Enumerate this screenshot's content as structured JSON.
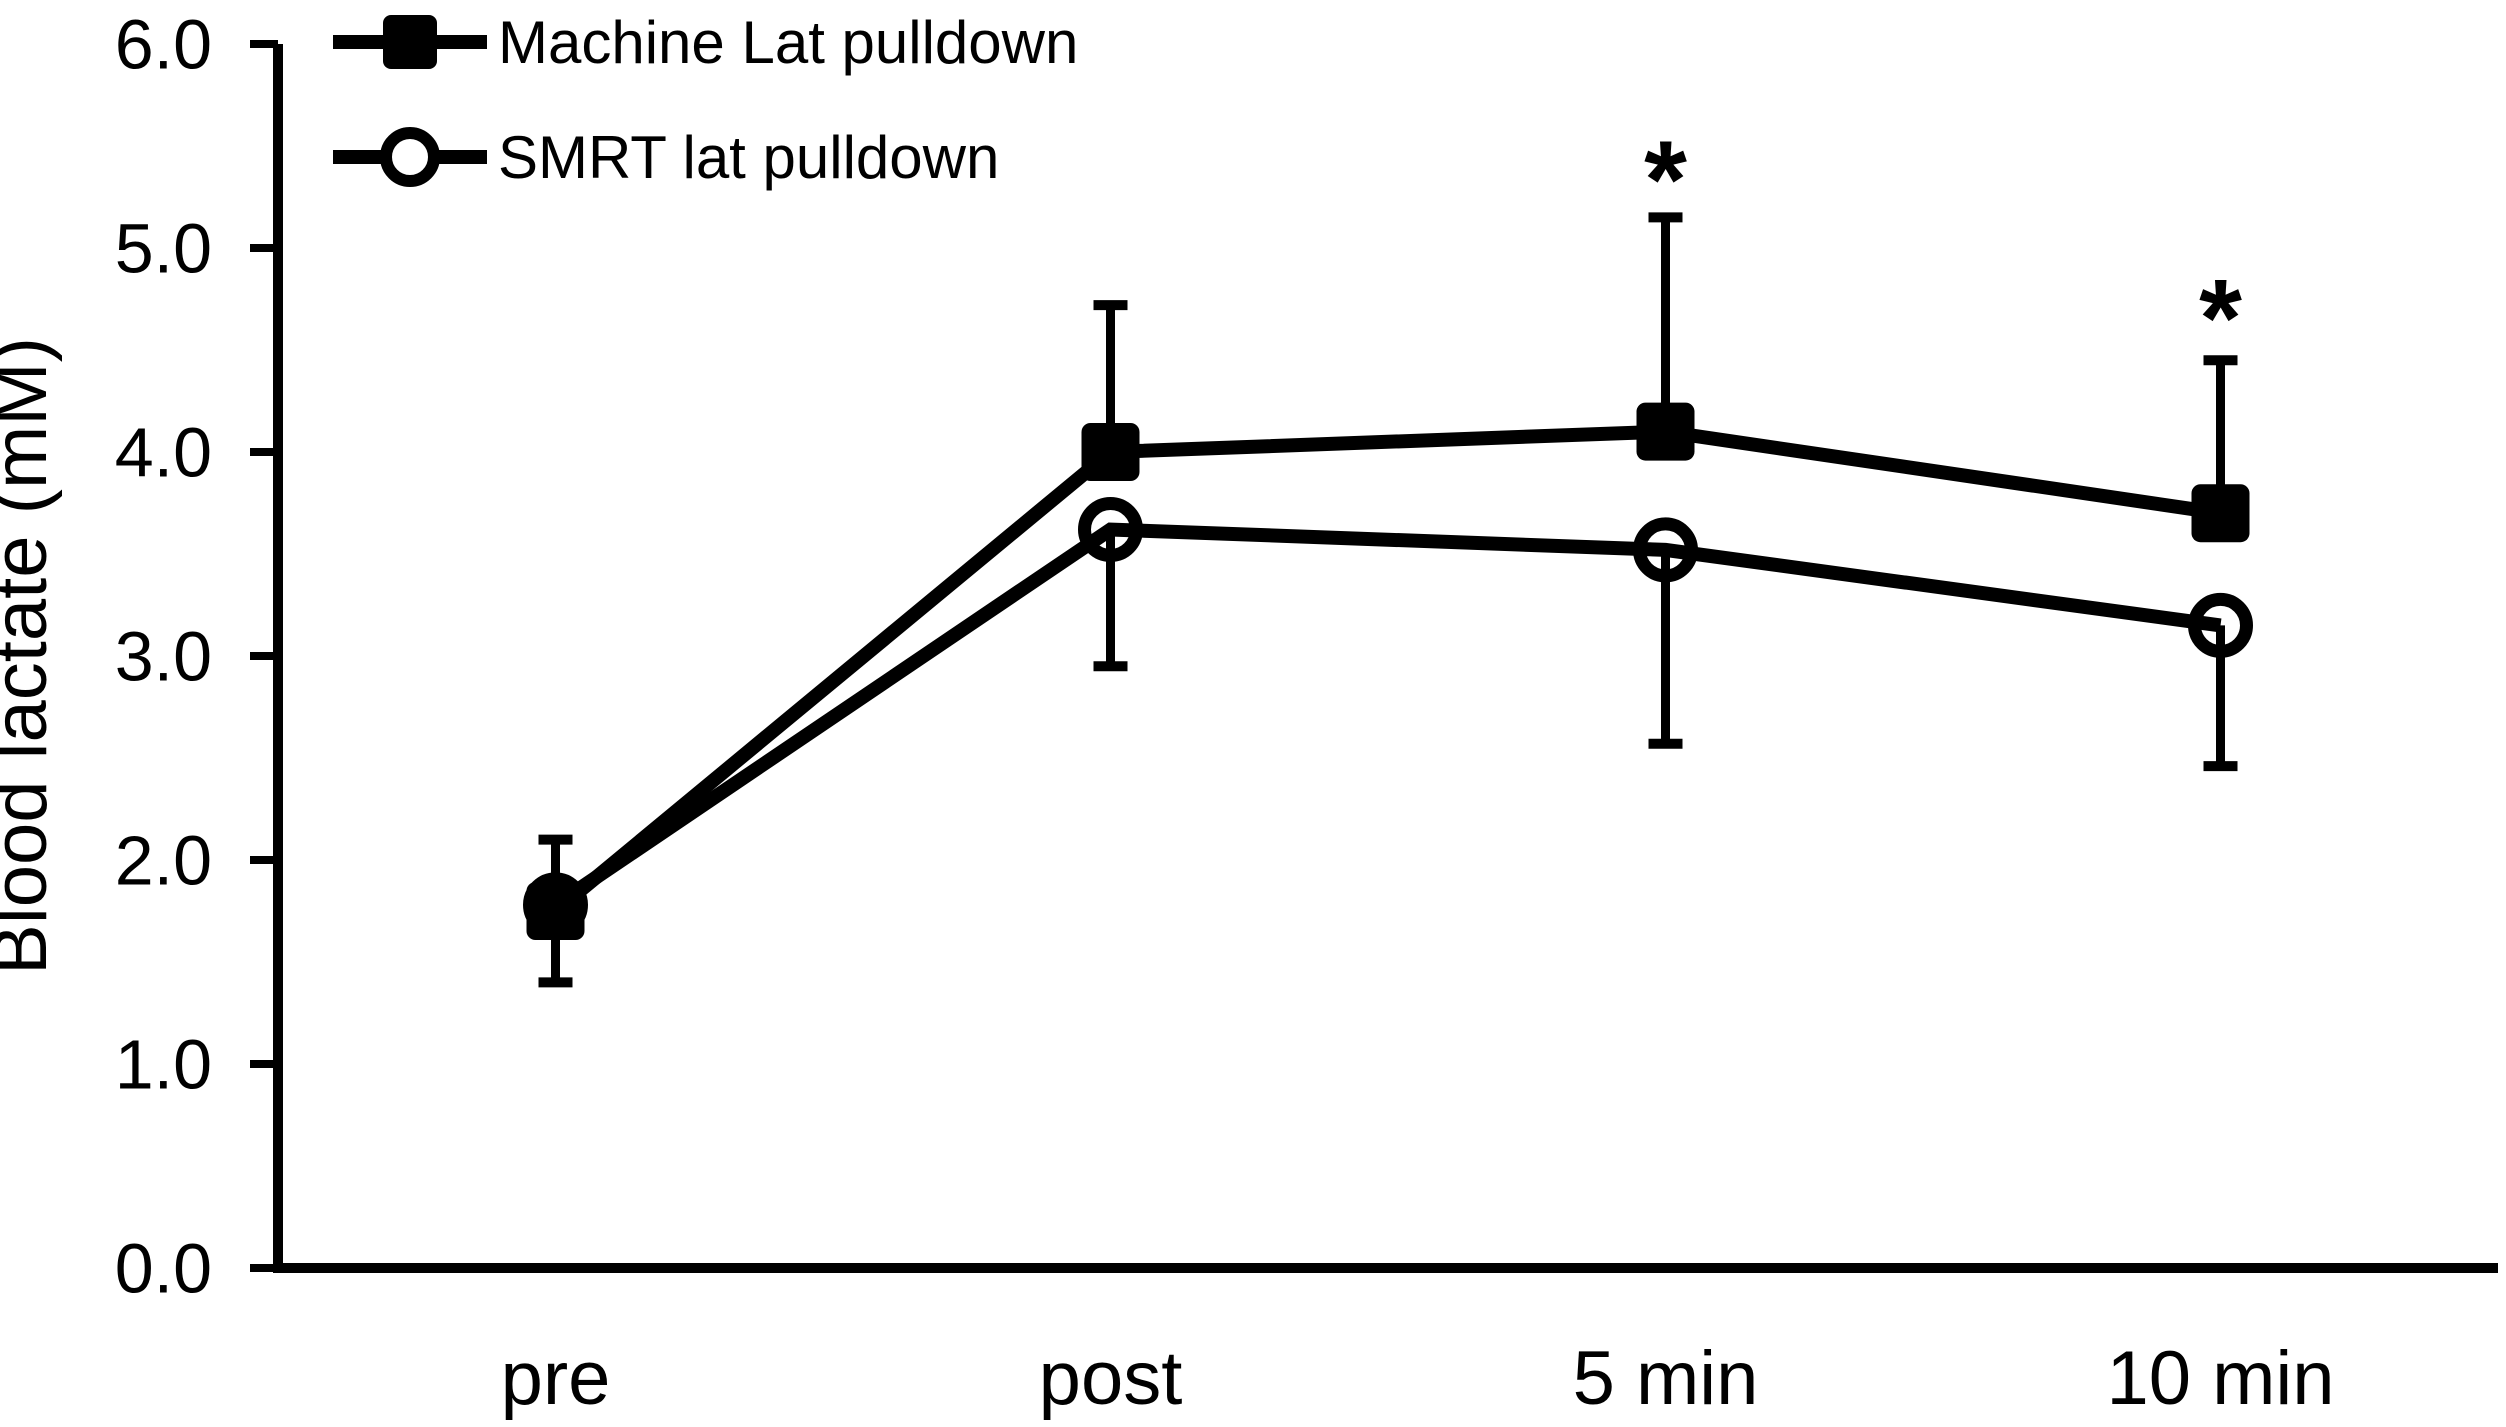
{
  "chart_data": {
    "type": "line",
    "title": "",
    "categories": [
      "pre",
      "post",
      "5 min",
      "10 min"
    ],
    "series": [
      {
        "name": "Machine Lat pulldown",
        "marker": "filled-square",
        "values": [
          1.75,
          4.0,
          4.1,
          3.7
        ],
        "error_up": [
          0.35,
          0.72,
          1.05,
          0.75
        ]
      },
      {
        "name": "SMRT lat pulldown",
        "marker": "open-circle",
        "values": [
          1.78,
          3.62,
          3.52,
          3.15
        ],
        "error_down": [
          0.38,
          0.67,
          0.95,
          0.69
        ]
      }
    ],
    "xlabel": "",
    "ylabel": "Blood lactate (mM)",
    "ylim": [
      0,
      6
    ],
    "ytick_step": 1.0,
    "ytick_labels": [
      "0.0",
      "1.0",
      "2.0",
      "3.0",
      "4.0",
      "5.0",
      "6.0"
    ],
    "annotations": [
      {
        "text": "*",
        "category": "5 min",
        "y": 5.42
      },
      {
        "text": "*",
        "category": "10 min",
        "y": 4.74
      }
    ],
    "legend_position": "top-left",
    "grid": false,
    "colors": {
      "series": "#000000",
      "background": "#ffffff"
    }
  }
}
